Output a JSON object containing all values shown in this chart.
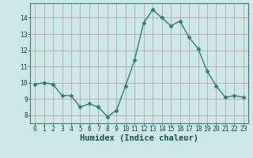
{
  "x": [
    0,
    1,
    2,
    3,
    4,
    5,
    6,
    7,
    8,
    9,
    10,
    11,
    12,
    13,
    14,
    15,
    16,
    17,
    18,
    19,
    20,
    21,
    22,
    23
  ],
  "y": [
    9.9,
    10.0,
    9.9,
    9.2,
    9.2,
    8.5,
    8.7,
    8.5,
    7.9,
    8.3,
    9.8,
    11.4,
    13.7,
    14.5,
    14.0,
    13.5,
    13.8,
    12.8,
    12.1,
    10.7,
    9.8,
    9.1,
    9.2,
    9.1
  ],
  "line_color": "#2e7d6e",
  "marker": "D",
  "marker_size": 2.5,
  "background_color": "#cce8e8",
  "grid_color_major": "#b8a0a0",
  "grid_color_minor": "#d4b8b8",
  "xlabel": "Humidex (Indice chaleur)",
  "ylim": [
    7.5,
    14.9
  ],
  "xlim": [
    -0.5,
    23.5
  ],
  "yticks": [
    8,
    9,
    10,
    11,
    12,
    13,
    14
  ],
  "xticks": [
    0,
    1,
    2,
    3,
    4,
    5,
    6,
    7,
    8,
    9,
    10,
    11,
    12,
    13,
    14,
    15,
    16,
    17,
    18,
    19,
    20,
    21,
    22,
    23
  ],
  "tick_fontsize": 5.8,
  "xlabel_fontsize": 7.5,
  "line_width": 1.0,
  "spine_color": "#2e7d6e"
}
